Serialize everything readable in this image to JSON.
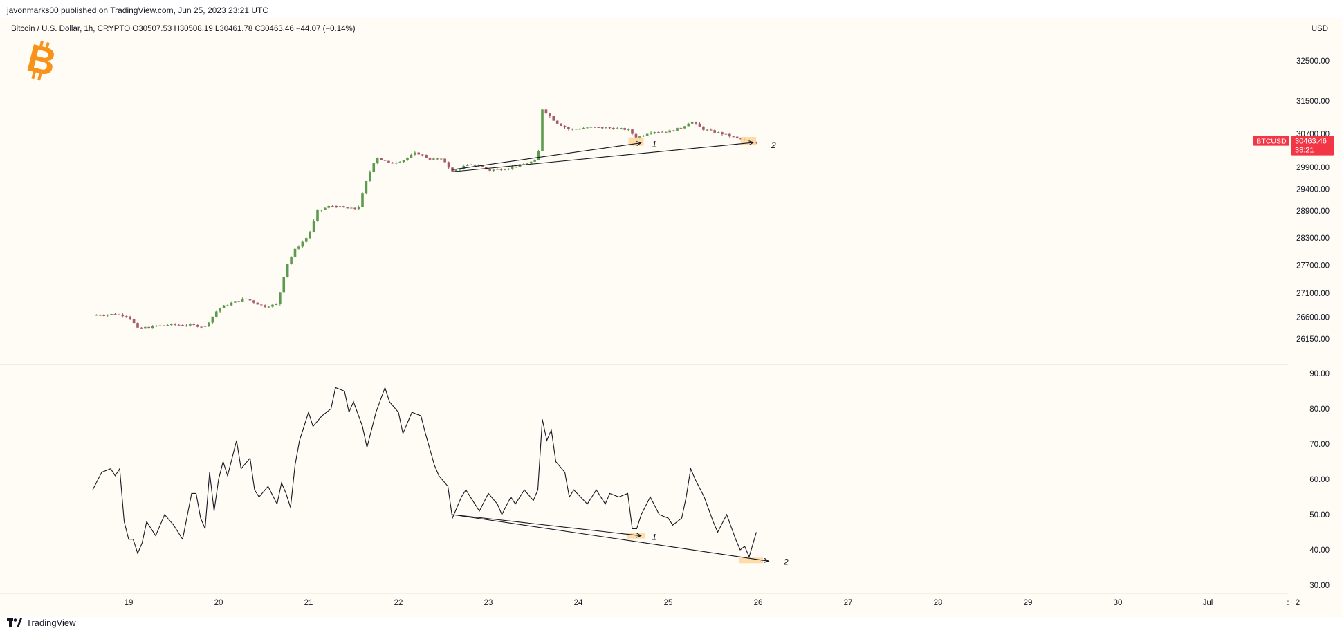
{
  "header": {
    "published": "javonmarks00 published on TradingView.com, Jun 25, 2023 23:21 UTC",
    "symbol_info": "Bitcoin / U.S. Dollar, 1h, CRYPTO  O30507.53  H30508.19  L30461.78  C30463.46  −44.07 (−0.14%)",
    "currency": "USD"
  },
  "colors": {
    "background": "#fffbf5",
    "up": "#5b9a4f",
    "down": "#a7586a",
    "badge": "#f23645",
    "highlight": "#ffd699",
    "bitcoin": "#f7931a"
  },
  "icons": [
    "bitcoin-logo-icon",
    "tradingview-logo-icon"
  ],
  "price_badge": {
    "symbol": "BTCUSD",
    "price": "30463.46",
    "countdown": "38:21"
  },
  "footer": {
    "brand": "TradingView"
  },
  "annotations": [
    "1",
    "2",
    "1",
    "2"
  ],
  "chart_data": [
    {
      "type": "candlestick",
      "title": "Bitcoin / U.S. Dollar, 1h",
      "yscale": "log",
      "ylim": [
        26000,
        33200
      ],
      "y_ticks": [
        "32500.00",
        "31500.00",
        "30700.00",
        "29900.00",
        "29400.00",
        "28900.00",
        "28300.00",
        "27700.00",
        "27100.00",
        "26600.00",
        "26150.00"
      ],
      "y_tick_values": [
        32500,
        31500,
        30700,
        29900,
        29400,
        28900,
        28300,
        27700,
        27100,
        26600,
        26150
      ],
      "x_ticks": [
        "19",
        "20",
        "21",
        "22",
        "23",
        "24",
        "25",
        "26",
        "27",
        "28",
        "29",
        "30",
        "Jul",
        "2"
      ],
      "x_range_days": [
        18.6,
        33.4
      ],
      "grid": false,
      "close_path": [
        [
          18.6,
          26640
        ],
        [
          18.85,
          26660
        ],
        [
          19.0,
          26620
        ],
        [
          19.1,
          26360
        ],
        [
          19.25,
          26400
        ],
        [
          19.45,
          26440
        ],
        [
          19.7,
          26430
        ],
        [
          19.85,
          26400
        ],
        [
          20.0,
          26780
        ],
        [
          20.15,
          26900
        ],
        [
          20.3,
          26990
        ],
        [
          20.5,
          26820
        ],
        [
          20.65,
          26860
        ],
        [
          20.75,
          27680
        ],
        [
          20.85,
          28040
        ],
        [
          21.0,
          28350
        ],
        [
          21.1,
          28900
        ],
        [
          21.25,
          29020
        ],
        [
          21.45,
          28950
        ],
        [
          21.55,
          28950
        ],
        [
          21.65,
          29630
        ],
        [
          21.75,
          30150
        ],
        [
          21.9,
          29990
        ],
        [
          22.05,
          30070
        ],
        [
          22.2,
          30250
        ],
        [
          22.35,
          30100
        ],
        [
          22.5,
          30080
        ],
        [
          22.6,
          29800
        ],
        [
          22.75,
          29950
        ],
        [
          22.9,
          29950
        ],
        [
          23.0,
          29830
        ],
        [
          23.2,
          29880
        ],
        [
          23.4,
          29980
        ],
        [
          23.55,
          30080
        ],
        [
          23.6,
          31300
        ],
        [
          23.75,
          30980
        ],
        [
          23.9,
          30800
        ],
        [
          24.1,
          30850
        ],
        [
          24.35,
          30840
        ],
        [
          24.55,
          30800
        ],
        [
          24.65,
          30600
        ],
        [
          24.8,
          30750
        ],
        [
          25.0,
          30750
        ],
        [
          25.15,
          30850
        ],
        [
          25.25,
          31000
        ],
        [
          25.4,
          30800
        ],
        [
          25.6,
          30700
        ],
        [
          25.75,
          30600
        ],
        [
          25.85,
          30540
        ],
        [
          25.98,
          30463
        ]
      ],
      "annotations": [
        {
          "label": "1",
          "from": [
            22.6,
            29850
          ],
          "to": [
            24.65,
            30480
          ]
        },
        {
          "label": "2",
          "from": [
            22.6,
            29800
          ],
          "to": [
            25.9,
            30490
          ]
        }
      ],
      "last_price": 30463.46
    },
    {
      "type": "line",
      "ylim": [
        30,
        90
      ],
      "y_ticks": [
        "90.00",
        "80.00",
        "70.00",
        "60.00",
        "50.00",
        "40.00",
        "30.00"
      ],
      "y_tick_values": [
        90,
        80,
        70,
        60,
        50,
        40,
        30
      ],
      "x": [
        18.6,
        18.7,
        18.8,
        18.85,
        18.9,
        18.95,
        19.0,
        19.05,
        19.1,
        19.15,
        19.2,
        19.3,
        19.35,
        19.4,
        19.5,
        19.6,
        19.7,
        19.75,
        19.8,
        19.85,
        19.9,
        19.95,
        20.0,
        20.05,
        20.1,
        20.2,
        20.25,
        20.35,
        20.4,
        20.45,
        20.55,
        20.65,
        20.7,
        20.75,
        20.8,
        20.85,
        20.9,
        21.0,
        21.05,
        21.15,
        21.25,
        21.3,
        21.4,
        21.45,
        21.5,
        21.6,
        21.65,
        21.75,
        21.85,
        21.9,
        22.0,
        22.05,
        22.15,
        22.25,
        22.3,
        22.4,
        22.45,
        22.55,
        22.6,
        22.7,
        22.75,
        22.9,
        23.0,
        23.1,
        23.15,
        23.25,
        23.3,
        23.4,
        23.5,
        23.55,
        23.6,
        23.65,
        23.7,
        23.75,
        23.85,
        23.9,
        23.95,
        24.1,
        24.2,
        24.3,
        24.35,
        24.45,
        24.55,
        24.6,
        24.65,
        24.7,
        24.8,
        24.9,
        25.0,
        25.05,
        25.15,
        25.2,
        25.25,
        25.3,
        25.4,
        25.5,
        25.55,
        25.65,
        25.75,
        25.8,
        25.85,
        25.9,
        25.98
      ],
      "values": [
        57,
        62,
        63,
        61,
        63,
        48,
        43,
        43,
        39,
        42,
        48,
        44,
        47,
        50,
        47,
        43,
        56,
        56,
        49,
        46,
        62,
        51,
        60,
        65,
        61,
        71,
        63,
        66,
        57,
        55,
        58,
        53,
        59,
        56,
        52,
        64,
        71,
        79,
        75,
        78,
        80,
        86,
        85,
        79,
        82,
        75,
        69,
        79,
        86,
        82,
        79,
        73,
        79,
        78,
        73,
        64,
        61,
        58,
        49,
        55,
        57,
        51,
        56,
        53,
        50,
        55,
        53,
        57,
        54,
        57,
        77,
        71,
        74,
        65,
        62,
        55,
        57,
        53,
        57,
        53,
        56,
        55,
        56,
        46,
        46,
        50,
        55,
        50,
        49,
        47,
        49,
        55,
        63,
        60,
        55,
        48,
        45,
        50,
        43,
        40,
        41,
        38,
        45
      ]
    }
  ]
}
